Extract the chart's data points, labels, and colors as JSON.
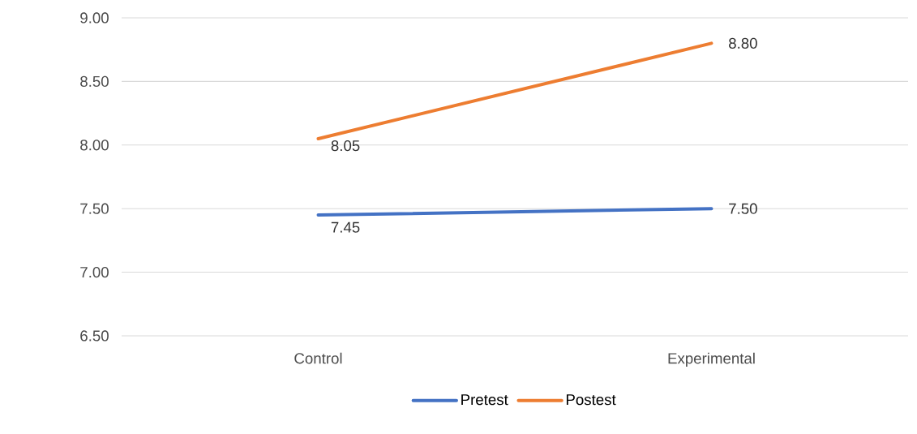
{
  "chart_data": {
    "type": "line",
    "categories": [
      "Control",
      "Experimental"
    ],
    "series": [
      {
        "name": "Pretest",
        "color": "#4472c4",
        "values": [
          7.45,
          7.5
        ],
        "value_labels": [
          "7.45",
          "7.50"
        ]
      },
      {
        "name": "Postest",
        "color": "#ed7d31",
        "values": [
          8.05,
          8.8
        ],
        "value_labels": [
          "8.05",
          "8.80"
        ]
      }
    ],
    "ylim": [
      6.5,
      9.0
    ],
    "yticks": [
      {
        "value": 6.5,
        "label": "6.50"
      },
      {
        "value": 7.0,
        "label": "7.00"
      },
      {
        "value": 7.5,
        "label": "7.50"
      },
      {
        "value": 8.0,
        "label": "8.00"
      },
      {
        "value": 8.5,
        "label": "8.50"
      },
      {
        "value": 9.0,
        "label": "9.00"
      }
    ],
    "grid": "y",
    "legend": "bottom",
    "marker": "none",
    "line_style": "solid"
  }
}
